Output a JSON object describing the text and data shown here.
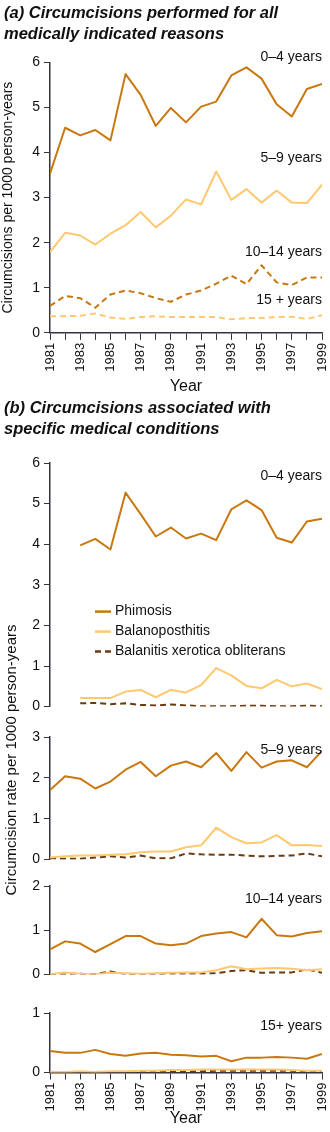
{
  "chart_data": [
    {
      "type": "line",
      "title": "(a) Circumcisions performed for all medically indicated reasons",
      "xlabel": "Year",
      "ylabel": "Circumcisions per 1000 person-years",
      "x": [
        1981,
        1982,
        1983,
        1984,
        1985,
        1986,
        1987,
        1988,
        1989,
        1990,
        1991,
        1992,
        1993,
        1994,
        1995,
        1996,
        1997,
        1998,
        1999
      ],
      "xlim": [
        1981,
        1999
      ],
      "xticks": [
        1981,
        {
          "value": 1982,
          "label": null
        },
        1983,
        {
          "value": 1984,
          "label": null
        },
        1985,
        {
          "value": 1986,
          "label": null
        },
        1987,
        {
          "value": 1988,
          "label": null
        },
        1989,
        {
          "value": 1990,
          "label": null
        },
        1991,
        {
          "value": 1992,
          "label": null
        },
        1993,
        {
          "value": 1994,
          "label": null
        },
        1995,
        {
          "value": 1996,
          "label": null
        },
        1997,
        {
          "value": 1998,
          "label": null
        },
        1999
      ],
      "ylim": [
        0,
        6
      ],
      "yticks": [
        0,
        1,
        2,
        3,
        4,
        5,
        6
      ],
      "grid": false,
      "legend": false,
      "marker": "none",
      "series": [
        {
          "name": "0–4 years",
          "color": "#c8780f",
          "line_style": "solid",
          "values": [
            3.53,
            4.55,
            4.38,
            4.5,
            4.27,
            5.74,
            5.28,
            4.59,
            4.99,
            4.67,
            5.02,
            5.13,
            5.71,
            5.89,
            5.64,
            5.07,
            4.8,
            5.41,
            5.52
          ]
        },
        {
          "name": "5–9 years",
          "color": "#ffc86e",
          "line_style": "solid",
          "values": [
            1.79,
            2.22,
            2.16,
            1.96,
            2.2,
            2.39,
            2.68,
            2.34,
            2.6,
            2.96,
            2.85,
            3.58,
            2.95,
            3.19,
            2.89,
            3.16,
            2.89,
            2.88,
            3.29
          ]
        },
        {
          "name": "10–14 years",
          "color": "#c8780f",
          "line_style": "dashed",
          "values": [
            0.6,
            0.82,
            0.77,
            0.56,
            0.85,
            0.94,
            0.88,
            0.77,
            0.69,
            0.85,
            0.94,
            1.09,
            1.27,
            1.08,
            1.5,
            1.12,
            1.06,
            1.23,
            1.23
          ]
        },
        {
          "name": "15 + years",
          "color": "#ffc86e",
          "line_style": "dashed",
          "values": [
            0.37,
            0.37,
            0.38,
            0.43,
            0.34,
            0.31,
            0.35,
            0.37,
            0.35,
            0.35,
            0.35,
            0.35,
            0.3,
            0.33,
            0.33,
            0.35,
            0.36,
            0.31,
            0.39
          ]
        }
      ]
    },
    {
      "type": "line",
      "title": "(b) Circumcisions associated with specific medical conditions",
      "ylabel": "Circumcision rate per 1000 person-years",
      "annotations": [
        "0–4 years"
      ],
      "xlim": [
        1981,
        1999
      ],
      "ylim": [
        0,
        6
      ],
      "yticks": [
        0,
        1,
        2,
        3,
        4,
        5,
        6
      ],
      "tick_labels": "y",
      "grid": false,
      "legend": "bottom left",
      "marker": "none",
      "series": [
        {
          "name": "Phimosis",
          "color": "#c8780f",
          "line_style": "solid",
          "x": [
            1983,
            1984,
            1985,
            1986,
            1987,
            1988,
            1989,
            1990,
            1991,
            1992,
            1993,
            1994,
            1995,
            1996,
            1997,
            1998,
            1999
          ],
          "values": [
            3.97,
            4.13,
            3.87,
            5.27,
            4.74,
            4.19,
            4.41,
            4.14,
            4.26,
            4.1,
            4.86,
            5.08,
            4.84,
            4.16,
            4.04,
            4.56,
            4.63
          ]
        },
        {
          "name": "Balanoposthitis",
          "color": "#ffc86e",
          "line_style": "solid",
          "x": [
            1983,
            1984,
            1985,
            1986,
            1987,
            1988,
            1989,
            1990,
            1991,
            1992,
            1993,
            1994,
            1995,
            1996,
            1997,
            1998,
            1999
          ],
          "values": [
            0.21,
            0.21,
            0.21,
            0.37,
            0.41,
            0.23,
            0.41,
            0.35,
            0.53,
            0.95,
            0.77,
            0.51,
            0.45,
            0.66,
            0.5,
            0.57,
            0.43
          ]
        },
        {
          "name": "Balanitis xerotica obliterans",
          "color": "#6b3a10",
          "line_style": "dashed",
          "x": [
            1983,
            1984,
            1985,
            1986,
            1987,
            1988,
            1989,
            1990,
            1991,
            1992,
            1993,
            1994,
            1995,
            1996,
            1997,
            1998,
            1999
          ],
          "values": [
            0.08,
            0.09,
            0.06,
            0.08,
            0.04,
            0.03,
            0.05,
            0.03,
            0.01,
            0.01,
            0.01,
            0.02,
            0.02,
            0.01,
            0.01,
            0.02,
            0.01
          ]
        }
      ]
    },
    {
      "type": "line",
      "annotations": [
        "5–9 years"
      ],
      "x": [
        1981,
        1982,
        1983,
        1984,
        1985,
        1986,
        1987,
        1988,
        1989,
        1990,
        1991,
        1992,
        1993,
        1994,
        1995,
        1996,
        1997,
        1998,
        1999
      ],
      "xlim": [
        1981,
        1999
      ],
      "ylim": [
        0,
        3
      ],
      "yticks": [
        0,
        1,
        2,
        3
      ],
      "tick_labels": "y",
      "grid": false,
      "legend": false,
      "marker": "none",
      "series": [
        {
          "color": "#c8780f",
          "line_style": "solid",
          "values": [
            1.7,
            2.04,
            1.98,
            1.74,
            1.91,
            2.2,
            2.39,
            2.04,
            2.3,
            2.4,
            2.26,
            2.61,
            2.17,
            2.63,
            2.25,
            2.4,
            2.43,
            2.26,
            2.66
          ]
        },
        {
          "color": "#ffc86e",
          "line_style": "solid",
          "values": [
            0.05,
            0.08,
            0.1,
            0.1,
            0.12,
            0.13,
            0.18,
            0.2,
            0.2,
            0.3,
            0.35,
            0.78,
            0.55,
            0.4,
            0.42,
            0.6,
            0.35,
            0.36,
            0.33
          ]
        },
        {
          "color": "#6b3a10",
          "line_style": "dashed",
          "values": [
            0.03,
            0.02,
            0.02,
            0.05,
            0.08,
            0.05,
            0.1,
            0.03,
            0.03,
            0.15,
            0.13,
            0.12,
            0.12,
            0.1,
            0.08,
            0.09,
            0.1,
            0.15,
            0.08
          ]
        }
      ]
    },
    {
      "type": "line",
      "annotations": [
        "10–14 years"
      ],
      "x": [
        1981,
        1982,
        1983,
        1984,
        1985,
        1986,
        1987,
        1988,
        1989,
        1990,
        1991,
        1992,
        1993,
        1994,
        1995,
        1996,
        1997,
        1998,
        1999
      ],
      "xlim": [
        1981,
        1999
      ],
      "ylim": [
        0,
        2
      ],
      "yticks": [
        0,
        1,
        2
      ],
      "tick_labels": "y",
      "grid": false,
      "legend": false,
      "marker": "none",
      "series": [
        {
          "color": "#c8780f",
          "line_style": "solid",
          "values": [
            0.57,
            0.75,
            0.7,
            0.51,
            0.69,
            0.87,
            0.87,
            0.7,
            0.66,
            0.7,
            0.87,
            0.93,
            0.96,
            0.84,
            1.26,
            0.89,
            0.86,
            0.94,
            0.98
          ]
        },
        {
          "color": "#ffc86e",
          "line_style": "solid",
          "values": [
            0.01,
            0.05,
            0.02,
            0.01,
            0.04,
            0.03,
            0.02,
            0.03,
            0.04,
            0.05,
            0.05,
            0.1,
            0.19,
            0.12,
            0.14,
            0.15,
            0.13,
            0.1,
            0.12
          ]
        },
        {
          "color": "#6b3a10",
          "line_style": "dashed",
          "values": [
            0.01,
            0.01,
            0.02,
            0.01,
            0.07,
            0.01,
            0.01,
            0.01,
            0.02,
            0.02,
            0.02,
            0.03,
            0.08,
            0.1,
            0.04,
            0.05,
            0.05,
            0.12,
            0.04
          ]
        }
      ]
    },
    {
      "type": "line",
      "xlabel": "Year",
      "annotations": [
        "15+ years"
      ],
      "x": [
        1981,
        1982,
        1983,
        1984,
        1985,
        1986,
        1987,
        1988,
        1989,
        1990,
        1991,
        1992,
        1993,
        1994,
        1995,
        1996,
        1997,
        1998,
        1999
      ],
      "xlim": [
        1981,
        1999
      ],
      "xticks": [
        1981,
        {
          "value": 1982,
          "label": null
        },
        1983,
        {
          "value": 1984,
          "label": null
        },
        1985,
        {
          "value": 1986,
          "label": null
        },
        1987,
        {
          "value": 1988,
          "label": null
        },
        1989,
        {
          "value": 1990,
          "label": null
        },
        1991,
        {
          "value": 1992,
          "label": null
        },
        1993,
        {
          "value": 1994,
          "label": null
        },
        1995,
        {
          "value": 1996,
          "label": null
        },
        1997,
        {
          "value": 1998,
          "label": null
        },
        1999
      ],
      "ylim": [
        0,
        1
      ],
      "yticks": [
        0,
        1
      ],
      "grid": false,
      "legend": false,
      "marker": "none",
      "series": [
        {
          "color": "#c8780f",
          "line_style": "solid",
          "values": [
            0.36,
            0.33,
            0.33,
            0.38,
            0.31,
            0.28,
            0.32,
            0.33,
            0.3,
            0.29,
            0.27,
            0.28,
            0.19,
            0.25,
            0.25,
            0.26,
            0.25,
            0.23,
            0.31
          ]
        },
        {
          "color": "#ffc86e",
          "line_style": "solid",
          "values": [
            0.01,
            0.01,
            0.02,
            0.01,
            0.02,
            0.02,
            0.03,
            0.03,
            0.04,
            0.04,
            0.05,
            0.05,
            0.05,
            0.05,
            0.05,
            0.05,
            0.04,
            0.03,
            0.03
          ]
        },
        {
          "color": "#6b3a10",
          "line_style": "dashed",
          "values": [
            0,
            0,
            0,
            0.01,
            0.01,
            0.01,
            0.01,
            0.01,
            0.01,
            0.02,
            0.02,
            0.03,
            0.03,
            0.03,
            0.03,
            0.03,
            0.03,
            0.02,
            0.02
          ]
        }
      ]
    }
  ]
}
